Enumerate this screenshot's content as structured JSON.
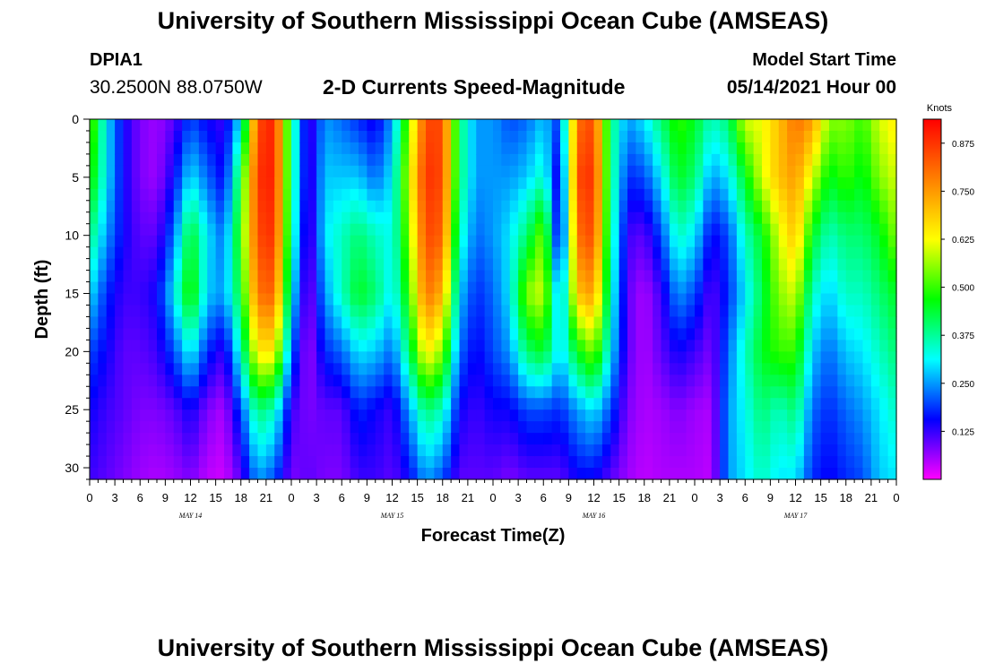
{
  "header": {
    "title": "University of Southern Mississippi Ocean Cube (AMSEAS)",
    "station_id": "DPIA1",
    "station_location": "30.2500N  88.0750W",
    "subtitle": "2-D Currents Speed-Magnitude",
    "model_start_label": "Model Start Time",
    "model_start_time": "05/14/2021 Hour 00"
  },
  "footer": {
    "title": "University of Southern Mississippi Ocean Cube (AMSEAS)"
  },
  "colors": {
    "scale": [
      "#ff00ff",
      "#0000ff",
      "#00ffff",
      "#00ff00",
      "#ffff00",
      "#ff8000",
      "#ff0000"
    ]
  },
  "chart_data": {
    "type": "heatmap",
    "title": "2-D Currents Speed-Magnitude",
    "xlabel": "Forecast Time(Z)",
    "ylabel": "Depth (ft)",
    "xlim": [
      0,
      96
    ],
    "ylim": [
      31,
      0
    ],
    "x_ticks": [
      0,
      3,
      6,
      9,
      12,
      15,
      18,
      21,
      24,
      27,
      30,
      33,
      36,
      39,
      42,
      45,
      48,
      51,
      54,
      57,
      60,
      63,
      66,
      69,
      72,
      75,
      78,
      81,
      84,
      87,
      90,
      93,
      96
    ],
    "x_tick_labels": [
      "0",
      "3",
      "6",
      "9",
      "12",
      "15",
      "18",
      "21",
      "0",
      "3",
      "6",
      "9",
      "12",
      "15",
      "18",
      "21",
      "0",
      "3",
      "6",
      "9",
      "12",
      "15",
      "18",
      "21",
      "0",
      "3",
      "6",
      "9",
      "12",
      "15",
      "18",
      "21",
      "0"
    ],
    "date_labels": [
      {
        "x": 12,
        "label": "MAY 14"
      },
      {
        "x": 36,
        "label": "MAY 15"
      },
      {
        "x": 60,
        "label": "MAY 16"
      },
      {
        "x": 84,
        "label": "MAY 17"
      }
    ],
    "y_ticks": [
      0,
      5,
      10,
      15,
      20,
      25,
      30
    ],
    "colorbar": {
      "label": "Knots",
      "min": 0,
      "max": 0.9375,
      "tick_values": [
        0.875,
        0.75,
        0.625,
        0.5,
        0.375,
        0.25,
        0.125
      ],
      "tick_labels": [
        "0.875",
        "0.750",
        "0.625",
        "0.500",
        "0.375",
        "0.250",
        "0.125"
      ]
    },
    "speed_profile": {
      "times": [
        0,
        2,
        4,
        6,
        8,
        10,
        12,
        14,
        16,
        18,
        20,
        22,
        24,
        26,
        28,
        30,
        32,
        34,
        36,
        38,
        40,
        42,
        44,
        46,
        48,
        50,
        52,
        54,
        56,
        58,
        60,
        62,
        64,
        66,
        68,
        70,
        72,
        74,
        76,
        78,
        80,
        82,
        84,
        86,
        88,
        90,
        92,
        94,
        96
      ],
      "depths": [
        0,
        5,
        10,
        15,
        20,
        25,
        31
      ],
      "values": [
        [
          0.55,
          0.5,
          0.4,
          0.3,
          0.2,
          0.15,
          0.12
        ],
        [
          0.3,
          0.3,
          0.25,
          0.18,
          0.15,
          0.12,
          0.1
        ],
        [
          0.15,
          0.15,
          0.15,
          0.12,
          0.1,
          0.1,
          0.08
        ],
        [
          0.08,
          0.08,
          0.1,
          0.12,
          0.1,
          0.08,
          0.06
        ],
        [
          0.06,
          0.06,
          0.1,
          0.15,
          0.12,
          0.08,
          0.05
        ],
        [
          0.1,
          0.15,
          0.22,
          0.3,
          0.2,
          0.1,
          0.06
        ],
        [
          0.2,
          0.3,
          0.45,
          0.5,
          0.32,
          0.15,
          0.08
        ],
        [
          0.15,
          0.22,
          0.3,
          0.28,
          0.18,
          0.08,
          0.04
        ],
        [
          0.12,
          0.15,
          0.22,
          0.25,
          0.12,
          0.05,
          0.03
        ],
        [
          0.3,
          0.45,
          0.5,
          0.45,
          0.35,
          0.2,
          0.1
        ],
        [
          0.85,
          0.88,
          0.85,
          0.8,
          0.65,
          0.4,
          0.25
        ],
        [
          0.9,
          0.9,
          0.88,
          0.82,
          0.65,
          0.35,
          0.2
        ],
        [
          0.4,
          0.4,
          0.38,
          0.32,
          0.22,
          0.12,
          0.08
        ],
        [
          0.1,
          0.1,
          0.08,
          0.06,
          0.05,
          0.08,
          0.1
        ],
        [
          0.25,
          0.28,
          0.3,
          0.25,
          0.18,
          0.1,
          0.08
        ],
        [
          0.22,
          0.28,
          0.35,
          0.35,
          0.22,
          0.1,
          0.08
        ],
        [
          0.18,
          0.28,
          0.4,
          0.45,
          0.3,
          0.18,
          0.12
        ],
        [
          0.14,
          0.22,
          0.35,
          0.4,
          0.28,
          0.15,
          0.12
        ],
        [
          0.25,
          0.3,
          0.32,
          0.3,
          0.22,
          0.12,
          0.1
        ],
        [
          0.55,
          0.6,
          0.55,
          0.5,
          0.4,
          0.25,
          0.15
        ],
        [
          0.85,
          0.88,
          0.85,
          0.8,
          0.65,
          0.4,
          0.25
        ],
        [
          0.85,
          0.85,
          0.82,
          0.72,
          0.55,
          0.35,
          0.2
        ],
        [
          0.4,
          0.4,
          0.35,
          0.28,
          0.22,
          0.15,
          0.1
        ],
        [
          0.25,
          0.25,
          0.22,
          0.18,
          0.15,
          0.12,
          0.1
        ],
        [
          0.25,
          0.25,
          0.25,
          0.22,
          0.2,
          0.15,
          0.1
        ],
        [
          0.2,
          0.25,
          0.3,
          0.3,
          0.25,
          0.15,
          0.08
        ],
        [
          0.22,
          0.28,
          0.4,
          0.55,
          0.4,
          0.2,
          0.1
        ],
        [
          0.28,
          0.35,
          0.55,
          0.6,
          0.45,
          0.2,
          0.1
        ],
        [
          0.18,
          0.1,
          0.08,
          0.22,
          0.28,
          0.18,
          0.1
        ],
        [
          0.8,
          0.85,
          0.8,
          0.7,
          0.45,
          0.25,
          0.15
        ],
        [
          0.85,
          0.88,
          0.85,
          0.75,
          0.55,
          0.3,
          0.15
        ],
        [
          0.4,
          0.4,
          0.38,
          0.35,
          0.3,
          0.2,
          0.1
        ],
        [
          0.25,
          0.18,
          0.12,
          0.1,
          0.1,
          0.08,
          0.06
        ],
        [
          0.3,
          0.2,
          0.1,
          0.05,
          0.05,
          0.05,
          0.04
        ],
        [
          0.4,
          0.3,
          0.2,
          0.12,
          0.1,
          0.06,
          0.05
        ],
        [
          0.5,
          0.45,
          0.35,
          0.25,
          0.15,
          0.08,
          0.05
        ],
        [
          0.45,
          0.4,
          0.3,
          0.2,
          0.12,
          0.06,
          0.05
        ],
        [
          0.35,
          0.25,
          0.15,
          0.1,
          0.08,
          0.05,
          0.04
        ],
        [
          0.4,
          0.3,
          0.2,
          0.18,
          0.22,
          0.25,
          0.25
        ],
        [
          0.6,
          0.45,
          0.35,
          0.3,
          0.35,
          0.32,
          0.3
        ],
        [
          0.62,
          0.6,
          0.45,
          0.42,
          0.45,
          0.4,
          0.35
        ],
        [
          0.7,
          0.7,
          0.6,
          0.55,
          0.5,
          0.35,
          0.3
        ],
        [
          0.8,
          0.75,
          0.7,
          0.6,
          0.5,
          0.4,
          0.3
        ],
        [
          0.75,
          0.6,
          0.45,
          0.35,
          0.28,
          0.22,
          0.18
        ],
        [
          0.55,
          0.45,
          0.35,
          0.28,
          0.22,
          0.18,
          0.15
        ],
        [
          0.55,
          0.5,
          0.4,
          0.35,
          0.28,
          0.22,
          0.18
        ],
        [
          0.5,
          0.45,
          0.4,
          0.35,
          0.3,
          0.25,
          0.2
        ],
        [
          0.6,
          0.55,
          0.45,
          0.4,
          0.35,
          0.3,
          0.28
        ],
        [
          0.65,
          0.6,
          0.55,
          0.45,
          0.4,
          0.35,
          0.3
        ]
      ]
    }
  }
}
